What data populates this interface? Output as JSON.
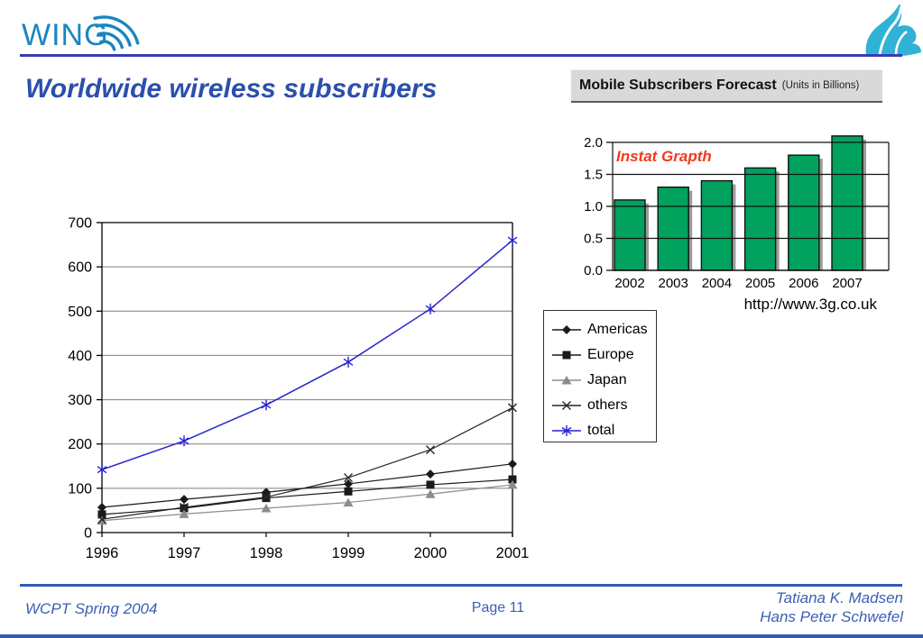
{
  "header": {
    "logo_text": "WING",
    "title": "Worldwide wireless subscribers"
  },
  "link_url": "http://www.3g.co.uk",
  "footer": {
    "left": "WCPT Spring 2004",
    "page": "Page 11",
    "right_line1": "Tatiana K. Madsen",
    "right_line2": "Hans Peter Schwefel"
  },
  "colors": {
    "wing_blue": "#1b85c0",
    "wave_logo_cyan": "#2fb2d6",
    "header_rule": "#3b3bb0",
    "title_blue": "#2b4fad",
    "footer_blue": "#2e5cb5",
    "bar_green": "#00a25e",
    "instat_red": "#f2391c",
    "total_line_blue": "#2525cd"
  },
  "chart_data": [
    {
      "type": "line",
      "title": "",
      "categories": [
        "1996",
        "1997",
        "1998",
        "1999",
        "2000",
        "2001"
      ],
      "series": [
        {
          "name": "Americas",
          "marker": "diamond",
          "color": "#1a1a1a",
          "values": [
            57,
            75,
            91,
            110,
            132,
            155
          ]
        },
        {
          "name": "Europe",
          "marker": "square",
          "color": "#1a1a1a",
          "values": [
            41,
            55,
            78,
            93,
            108,
            120
          ]
        },
        {
          "name": "Japan",
          "marker": "triangle",
          "color": "#8c8c8c",
          "values": [
            27,
            42,
            55,
            68,
            87,
            108
          ]
        },
        {
          "name": "others",
          "marker": "x",
          "color": "#262626",
          "values": [
            30,
            57,
            80,
            124,
            187,
            282
          ]
        },
        {
          "name": "total",
          "marker": "star",
          "color": "#2525cd",
          "values": [
            142,
            207,
            288,
            385,
            505,
            660
          ]
        }
      ],
      "ylim": [
        0,
        700
      ],
      "yticks": [
        0,
        100,
        200,
        300,
        400,
        500,
        600,
        700
      ],
      "ytick_labels": [
        "0",
        "100",
        "200",
        "300",
        "400",
        "500",
        "600",
        "700"
      ],
      "grid": true,
      "legend_position": "right"
    },
    {
      "type": "bar",
      "title": "Mobile Subscribers Forecast",
      "title_suffix": "(Units in Billions)",
      "annotation": "Instat Grapth",
      "categories": [
        "2002",
        "2003",
        "2004",
        "2005",
        "2006",
        "2007"
      ],
      "values": [
        1.1,
        1.3,
        1.4,
        1.6,
        1.8,
        2.1
      ],
      "ylim": [
        0,
        2.0
      ],
      "yticks": [
        0,
        0.5,
        1.0,
        1.5,
        2.0
      ],
      "ytick_labels": [
        "0.0",
        "0.5",
        "1.0",
        "1.5",
        "2.0"
      ],
      "bar_color": "#00a25e",
      "grid": true
    }
  ]
}
